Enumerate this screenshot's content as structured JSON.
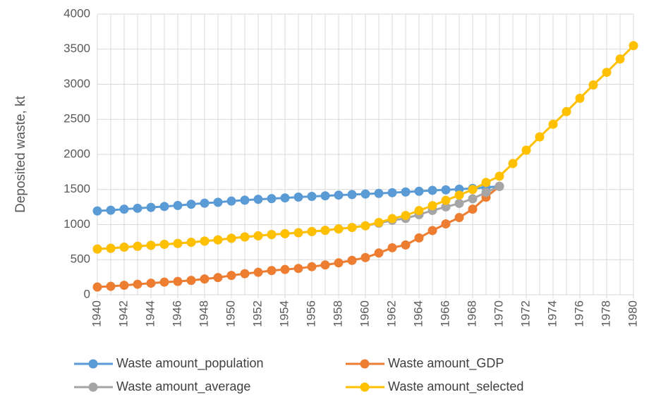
{
  "chart_data": {
    "type": "line",
    "y_label": "Deposited waste, kt",
    "x": [
      1940,
      1941,
      1942,
      1943,
      1944,
      1945,
      1946,
      1947,
      1948,
      1949,
      1950,
      1951,
      1952,
      1953,
      1954,
      1955,
      1956,
      1957,
      1958,
      1959,
      1960,
      1961,
      1962,
      1963,
      1964,
      1965,
      1966,
      1967,
      1968,
      1969,
      1970,
      1971,
      1972,
      1973,
      1974,
      1975,
      1976,
      1977,
      1978,
      1979,
      1980
    ],
    "xlim": [
      1940,
      1980
    ],
    "xticks": [
      1940,
      1942,
      1944,
      1946,
      1948,
      1950,
      1952,
      1954,
      1956,
      1958,
      1960,
      1962,
      1964,
      1966,
      1968,
      1970,
      1972,
      1974,
      1976,
      1978,
      1980
    ],
    "ylim": [
      0,
      4000
    ],
    "yticks": [
      0,
      500,
      1000,
      1500,
      2000,
      2500,
      3000,
      3500,
      4000
    ],
    "grid": true,
    "legend": "bottom",
    "series": [
      {
        "name": "Waste amount_population",
        "color": "#5b9bd5",
        "values": [
          1195,
          1205,
          1220,
          1232,
          1245,
          1258,
          1272,
          1290,
          1305,
          1318,
          1335,
          1348,
          1360,
          1370,
          1380,
          1392,
          1402,
          1410,
          1420,
          1428,
          1436,
          1445,
          1455,
          1465,
          1475,
          1488,
          1495,
          1505,
          1515,
          1530,
          1545,
          null,
          null,
          null,
          null,
          null,
          null,
          null,
          null,
          null,
          null
        ]
      },
      {
        "name": "Waste amount_GDP",
        "color": "#ed7d31",
        "values": [
          110,
          120,
          135,
          150,
          165,
          180,
          190,
          205,
          225,
          245,
          275,
          300,
          320,
          345,
          360,
          375,
          400,
          425,
          455,
          490,
          530,
          595,
          670,
          710,
          810,
          915,
          1010,
          1100,
          1220,
          1390,
          1545,
          null,
          null,
          null,
          null,
          null,
          null,
          null,
          null,
          null,
          null
        ]
      },
      {
        "name": "Waste amount_average",
        "color": "#a5a5a5",
        "values": [
          652,
          662,
          678,
          691,
          705,
          719,
          731,
          748,
          765,
          782,
          805,
          824,
          840,
          858,
          870,
          884,
          901,
          918,
          938,
          959,
          983,
          1020,
          1062,
          1088,
          1142,
          1202,
          1252,
          1302,
          1368,
          1460,
          1545,
          null,
          null,
          null,
          null,
          null,
          null,
          null,
          null,
          null,
          null
        ]
      },
      {
        "name": "Waste amount_selected",
        "color": "#ffc000",
        "values": [
          652,
          662,
          678,
          691,
          705,
          719,
          731,
          748,
          765,
          782,
          805,
          824,
          840,
          858,
          870,
          884,
          901,
          918,
          938,
          959,
          983,
          1030,
          1085,
          1130,
          1200,
          1270,
          1345,
          1420,
          1500,
          1600,
          1690,
          1870,
          2060,
          2250,
          2430,
          2610,
          2800,
          2990,
          3170,
          3360,
          3550
        ]
      }
    ]
  }
}
